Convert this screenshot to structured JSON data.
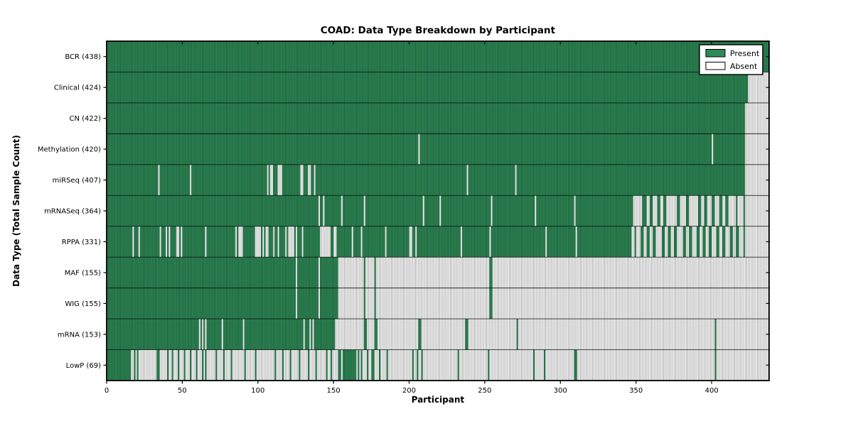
{
  "title": "COAD: Data Type Breakdown by Participant",
  "xlabel": "Participant",
  "ylabel": "Data Type (Total Sample Count)",
  "legend": {
    "items": [
      {
        "label": "Present",
        "state": "present"
      },
      {
        "label": "Absent",
        "state": "absent"
      }
    ]
  },
  "colors": {
    "present": "#2e8b57",
    "absent": "#ffffff",
    "hairline": "rgba(0,0,0,0.42)",
    "separator": "rgba(0,0,0,0.8)",
    "border": "#000000"
  },
  "chart_data": {
    "type": "heatmap",
    "x_ticks": [
      0,
      50,
      100,
      150,
      200,
      250,
      300,
      350,
      400
    ],
    "n_participants": 438,
    "xlim": [
      0,
      438
    ],
    "grid": false,
    "legend_position": "upper right",
    "note": "Each row is green (present) or white (absent) per participant; 'segments' are [start,end) participant ranges of the state opposite to 'base'.",
    "rows": [
      {
        "label": "BCR",
        "count": 438,
        "base": "present",
        "segments": []
      },
      {
        "label": "Clinical",
        "count": 424,
        "base": "present",
        "segments": [
          [
            424,
            438
          ]
        ]
      },
      {
        "label": "CN",
        "count": 422,
        "base": "present",
        "segments": [
          [
            422,
            438
          ]
        ]
      },
      {
        "label": "Methylation",
        "count": 420,
        "base": "present",
        "segments": [
          [
            206,
            207
          ],
          [
            400,
            401
          ],
          [
            422,
            438
          ]
        ]
      },
      {
        "label": "miRSeq",
        "count": 407,
        "base": "present",
        "segments": [
          [
            34,
            35
          ],
          [
            55,
            56
          ],
          [
            106,
            107
          ],
          [
            108,
            110
          ],
          [
            113,
            116
          ],
          [
            128,
            130
          ],
          [
            133,
            135
          ],
          [
            137,
            138
          ],
          [
            238,
            239
          ],
          [
            270,
            271
          ],
          [
            422,
            438
          ]
        ]
      },
      {
        "label": "mRNASeq",
        "count": 364,
        "base": "present",
        "segments": [
          [
            140,
            141
          ],
          [
            143,
            144
          ],
          [
            155,
            156
          ],
          [
            170,
            171
          ],
          [
            209,
            210
          ],
          [
            220,
            221
          ],
          [
            254,
            255
          ],
          [
            283,
            284
          ],
          [
            309,
            310
          ],
          [
            348,
            354
          ],
          [
            357,
            359
          ],
          [
            361,
            364
          ],
          [
            366,
            368
          ],
          [
            370,
            377
          ],
          [
            379,
            383
          ],
          [
            385,
            391
          ],
          [
            393,
            395
          ],
          [
            397,
            400
          ],
          [
            402,
            405
          ],
          [
            407,
            409
          ],
          [
            411,
            416
          ],
          [
            417,
            421
          ],
          [
            422,
            438
          ]
        ]
      },
      {
        "label": "RPPA",
        "count": 331,
        "base": "present",
        "segments": [
          [
            17,
            18
          ],
          [
            21,
            22
          ],
          [
            35,
            36
          ],
          [
            39,
            40
          ],
          [
            41,
            42
          ],
          [
            46,
            48
          ],
          [
            49,
            50
          ],
          [
            65,
            66
          ],
          [
            85,
            86
          ],
          [
            87,
            90
          ],
          [
            98,
            102
          ],
          [
            103,
            104
          ],
          [
            105,
            107
          ],
          [
            110,
            111
          ],
          [
            113,
            114
          ],
          [
            118,
            119
          ],
          [
            120,
            124
          ],
          [
            125,
            126
          ],
          [
            129,
            130
          ],
          [
            141,
            148
          ],
          [
            150,
            152
          ],
          [
            162,
            163
          ],
          [
            168,
            169
          ],
          [
            184,
            185
          ],
          [
            200,
            202
          ],
          [
            204,
            205
          ],
          [
            234,
            235
          ],
          [
            253,
            254
          ],
          [
            290,
            291
          ],
          [
            310,
            311
          ],
          [
            347,
            349
          ],
          [
            350,
            353
          ],
          [
            355,
            357
          ],
          [
            359,
            361
          ],
          [
            363,
            367
          ],
          [
            369,
            371
          ],
          [
            373,
            375
          ],
          [
            377,
            381
          ],
          [
            383,
            385
          ],
          [
            387,
            390
          ],
          [
            392,
            394
          ],
          [
            396,
            398
          ],
          [
            400,
            403
          ],
          [
            405,
            407
          ],
          [
            409,
            412
          ],
          [
            414,
            416
          ],
          [
            418,
            421
          ],
          [
            422,
            438
          ]
        ]
      },
      {
        "label": "MAF",
        "count": 155,
        "base": "absent",
        "segments": [
          [
            0,
            125
          ],
          [
            126,
            140
          ],
          [
            141,
            153
          ],
          [
            170,
            171
          ],
          [
            177,
            178
          ],
          [
            253,
            255
          ]
        ]
      },
      {
        "label": "WIG",
        "count": 155,
        "base": "absent",
        "segments": [
          [
            0,
            125
          ],
          [
            126,
            140
          ],
          [
            141,
            153
          ],
          [
            170,
            171
          ],
          [
            177,
            178
          ],
          [
            253,
            255
          ]
        ]
      },
      {
        "label": "mRNA",
        "count": 153,
        "base": "absent",
        "segments": [
          [
            0,
            61
          ],
          [
            62,
            63
          ],
          [
            64,
            65
          ],
          [
            66,
            76
          ],
          [
            77,
            90
          ],
          [
            91,
            130
          ],
          [
            131,
            134
          ],
          [
            135,
            136
          ],
          [
            137,
            151
          ],
          [
            170,
            172
          ],
          [
            177,
            179
          ],
          [
            206,
            208
          ],
          [
            237,
            239
          ],
          [
            271,
            272
          ],
          [
            402,
            403
          ]
        ]
      },
      {
        "label": "LowP",
        "count": 69,
        "base": "absent",
        "segments": [
          [
            0,
            16
          ],
          [
            18,
            19
          ],
          [
            20,
            21
          ],
          [
            33,
            35
          ],
          [
            40,
            41
          ],
          [
            43,
            44
          ],
          [
            47,
            48
          ],
          [
            51,
            52
          ],
          [
            55,
            56
          ],
          [
            59,
            60
          ],
          [
            63,
            64
          ],
          [
            65,
            66
          ],
          [
            72,
            73
          ],
          [
            77,
            78
          ],
          [
            82,
            83
          ],
          [
            91,
            92
          ],
          [
            98,
            99
          ],
          [
            111,
            112
          ],
          [
            116,
            117
          ],
          [
            121,
            122
          ],
          [
            127,
            128
          ],
          [
            133,
            134
          ],
          [
            138,
            139
          ],
          [
            145,
            146
          ],
          [
            148,
            149
          ],
          [
            153,
            155
          ],
          [
            156,
            165
          ],
          [
            166,
            167
          ],
          [
            168,
            169
          ],
          [
            172,
            173
          ],
          [
            175,
            177
          ],
          [
            180,
            181
          ],
          [
            185,
            186
          ],
          [
            202,
            203
          ],
          [
            205,
            206
          ],
          [
            208,
            209
          ],
          [
            232,
            233
          ],
          [
            252,
            253
          ],
          [
            282,
            283
          ],
          [
            289,
            290
          ],
          [
            309,
            311
          ],
          [
            402,
            403
          ]
        ]
      }
    ]
  }
}
